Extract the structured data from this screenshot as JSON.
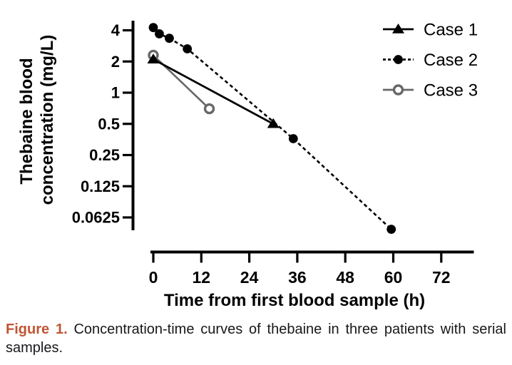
{
  "colors": {
    "axis": "#000000",
    "case1": "#000000",
    "case2": "#000000",
    "case3": "#686868",
    "figure_label": "#c05534",
    "caption_text": "#17181a",
    "background": "#ffffff"
  },
  "chart_data": {
    "type": "line",
    "title": "",
    "x_axis": {
      "label": "Time from first blood sample (h)",
      "ticks": [
        0,
        12,
        24,
        36,
        48,
        60,
        72
      ],
      "range": [
        0,
        80
      ],
      "scale": "linear"
    },
    "y_axis": {
      "label_lines": [
        "Thebaine blood",
        "concentration (mg/L)"
      ],
      "ticks": [
        4,
        2,
        1,
        0.5,
        0.25,
        0.125,
        0.0625
      ],
      "tick_labels": [
        "4",
        "2",
        "1",
        "0.5",
        "0.25",
        "0.125",
        "0.0625"
      ],
      "top_value": 4,
      "scale": "log2",
      "grid": false
    },
    "legend": {
      "position": "top-right",
      "entries": [
        "Case 1",
        "Case 2",
        "Case 3"
      ]
    },
    "series": [
      {
        "name": "Case 1",
        "marker": "triangle",
        "line": "solid",
        "color_key": "case1",
        "points": [
          [
            0,
            2.1
          ],
          [
            30,
            0.5
          ]
        ]
      },
      {
        "name": "Case 2",
        "marker": "circle",
        "line": "dashed",
        "color_key": "case2",
        "points": [
          [
            0,
            4.25
          ],
          [
            1.5,
            3.7
          ],
          [
            4,
            3.35
          ],
          [
            8.5,
            2.65
          ],
          [
            35,
            0.36
          ],
          [
            59.5,
            0.048
          ]
        ]
      },
      {
        "name": "Case 3",
        "marker": "open-circle",
        "line": "solid",
        "color_key": "case3",
        "points": [
          [
            0,
            2.3
          ],
          [
            14,
            0.7
          ]
        ]
      }
    ]
  },
  "caption": {
    "label": "Figure 1.",
    "text": "Concentration-time curves of thebaine in three patients with serial samples."
  }
}
